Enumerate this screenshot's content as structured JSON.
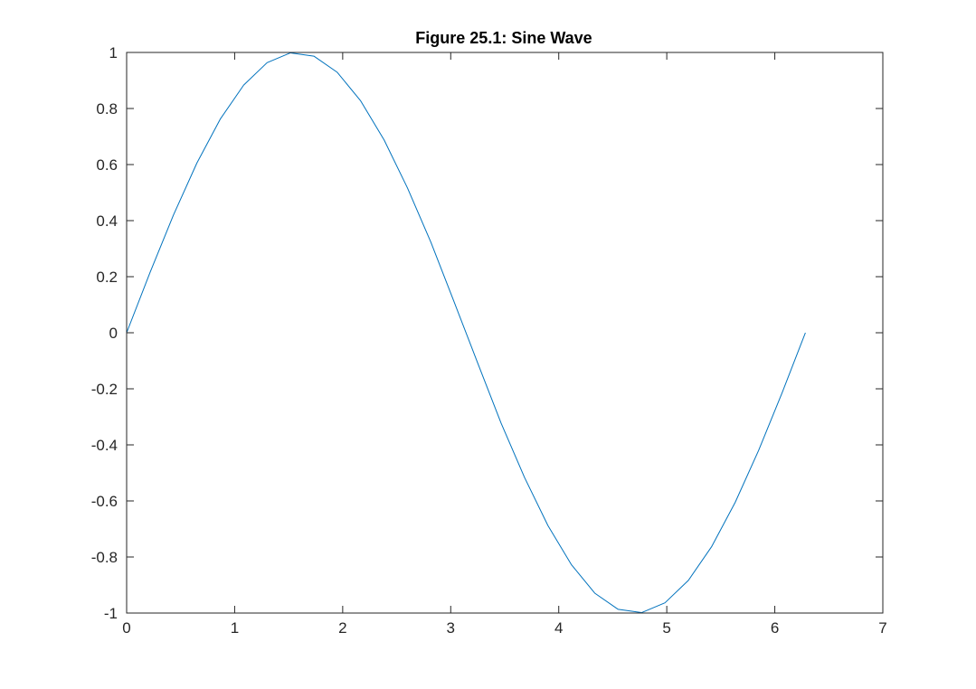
{
  "chart_data": {
    "type": "line",
    "title": "Figure 25.1: Sine Wave",
    "xlabel": "",
    "ylabel": "",
    "xlim": [
      0,
      7
    ],
    "ylim": [
      -1,
      1
    ],
    "xticks": [
      0,
      1,
      2,
      3,
      4,
      5,
      6,
      7
    ],
    "xtick_labels": [
      "0",
      "1",
      "2",
      "3",
      "4",
      "5",
      "6",
      "7"
    ],
    "yticks": [
      1,
      0.8,
      0.6,
      0.4,
      0.2,
      0,
      -0.2,
      -0.4,
      -0.6,
      -0.8,
      -1
    ],
    "ytick_labels": [
      "1",
      "0.8",
      "0.6",
      "0.4",
      "0.2",
      "0",
      "-0.2",
      "-0.4",
      "-0.6",
      "-0.8",
      "-1"
    ],
    "grid": false,
    "legend": "none",
    "colors": {
      "line": "#0072BD",
      "axes": "#262626"
    },
    "series": [
      {
        "x": [
          0,
          0.2167,
          0.4333,
          0.65,
          0.8666,
          1.0833,
          1.3,
          1.5166,
          1.7333,
          1.95,
          2.1666,
          2.3833,
          2.5999,
          2.8166,
          3.0333,
          3.2499,
          3.4666,
          3.6833,
          3.8999,
          4.1166,
          4.3332,
          4.5499,
          4.7666,
          4.9832,
          5.1999,
          5.4166,
          5.6332,
          5.8499,
          6.0666,
          6.2832
        ],
        "y": [
          0,
          0.215,
          0.4199,
          0.6052,
          0.7622,
          0.8835,
          0.9635,
          0.9985,
          0.9868,
          0.929,
          0.8271,
          0.6878,
          0.5163,
          0.3228,
          0.1081,
          -0.1081,
          -0.3228,
          -0.5163,
          -0.6878,
          -0.8271,
          -0.929,
          -0.9868,
          -0.9985,
          -0.9635,
          -0.8835,
          -0.7622,
          -0.6052,
          -0.4199,
          -0.215,
          0
        ]
      }
    ]
  }
}
